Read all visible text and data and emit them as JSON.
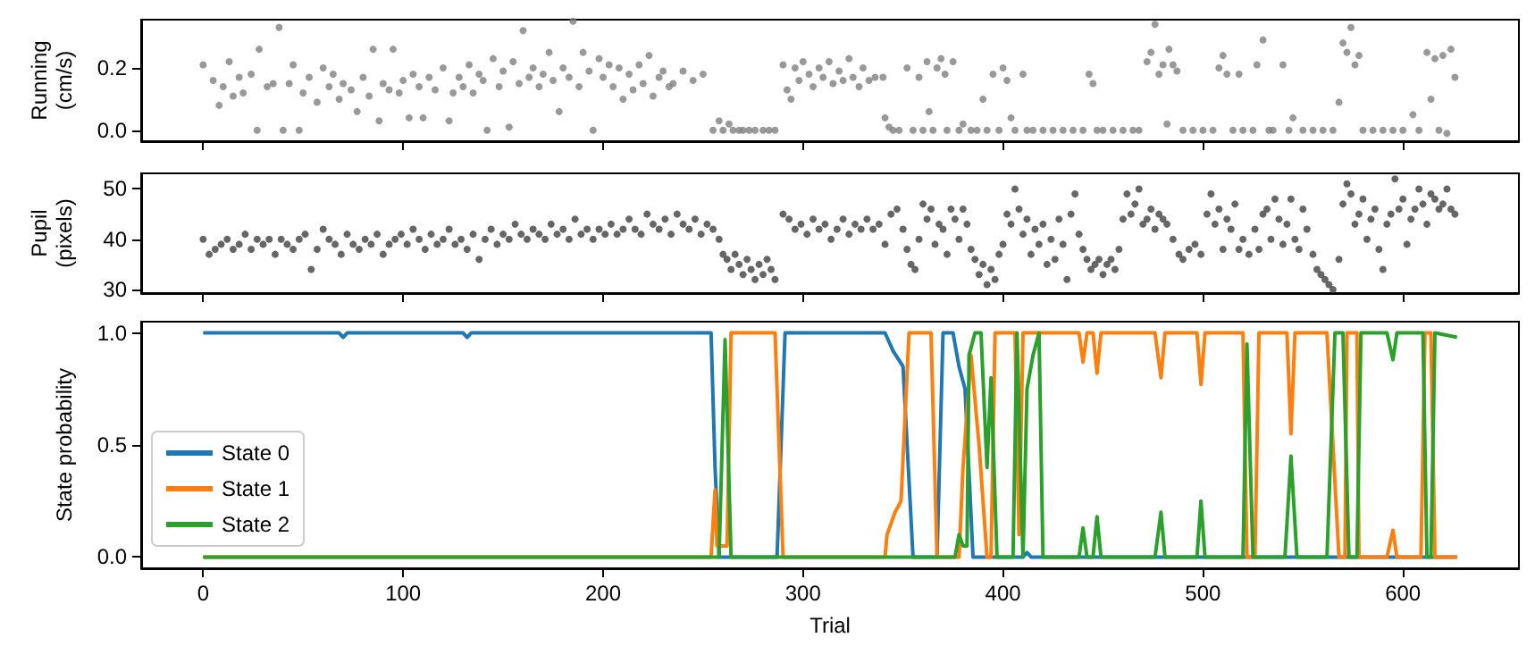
{
  "chart_data": [
    {
      "type": "scatter",
      "ylabel": "Running\n(cm/s)",
      "marker": "circle",
      "tick_labels": "y",
      "xlim": [
        -31,
        658
      ],
      "xticks": [
        0,
        100,
        200,
        300,
        400,
        500,
        600
      ],
      "ylim": [
        -0.035,
        0.355
      ],
      "yticks": [
        {
          "value": 0,
          "label": "0.0"
        },
        {
          "value": 0.2,
          "label": "0.2"
        }
      ],
      "series": [
        {
          "color": "#808080",
          "x": [
            0,
            5,
            8,
            10,
            13,
            15,
            18,
            20,
            24,
            27,
            28,
            32,
            35,
            38,
            40,
            43,
            45,
            48,
            50,
            53,
            57,
            60,
            63,
            65,
            68,
            70,
            74,
            77,
            80,
            83,
            85,
            88,
            90,
            93,
            95,
            98,
            100,
            103,
            105,
            108,
            110,
            113,
            116,
            120,
            123,
            125,
            128,
            130,
            133,
            135,
            138,
            140,
            142,
            145,
            148,
            150,
            153,
            155,
            158,
            160,
            163,
            165,
            168,
            170,
            173,
            175,
            178,
            180,
            183,
            185,
            188,
            190,
            193,
            195,
            198,
            200,
            203,
            205,
            208,
            210,
            213,
            215,
            218,
            220,
            223,
            225,
            228,
            230,
            233,
            235,
            240,
            245,
            250,
            255,
            258,
            260,
            263,
            265,
            268,
            270,
            273,
            276,
            280,
            283,
            286,
            290,
            292,
            294,
            296,
            298,
            300,
            303,
            305,
            308,
            310,
            313,
            315,
            318,
            320,
            323,
            325,
            328,
            330,
            333,
            336,
            340,
            341,
            343,
            345,
            348,
            352,
            355,
            358,
            360,
            362,
            363,
            365,
            367,
            369,
            371,
            372,
            375,
            378,
            380,
            384,
            387,
            390,
            392,
            395,
            398,
            400,
            402,
            404,
            406,
            410,
            412,
            415,
            420,
            425,
            430,
            435,
            440,
            443,
            445,
            447,
            450,
            455,
            460,
            465,
            468,
            472,
            474,
            476,
            478,
            480,
            482,
            483,
            485,
            487,
            490,
            495,
            500,
            505,
            508,
            510,
            512,
            515,
            518,
            520,
            525,
            527,
            530,
            533,
            535,
            540,
            543,
            545,
            550,
            555,
            560,
            565,
            568,
            570,
            572,
            574,
            576,
            578,
            580,
            585,
            590,
            595,
            600,
            605,
            608,
            612,
            614,
            616,
            618,
            620,
            622,
            624,
            626
          ],
          "values": [
            0.21,
            0.16,
            0.08,
            0.14,
            0.22,
            0.11,
            0.17,
            0.12,
            0.18,
            0.0,
            0.26,
            0.14,
            0.15,
            0.33,
            0.0,
            0.15,
            0.21,
            0.0,
            0.12,
            0.17,
            0.09,
            0.2,
            0.14,
            0.18,
            0.1,
            0.15,
            0.13,
            0.06,
            0.17,
            0.11,
            0.26,
            0.03,
            0.15,
            0.13,
            0.26,
            0.12,
            0.16,
            0.04,
            0.18,
            0.14,
            0.04,
            0.17,
            0.13,
            0.2,
            0.03,
            0.12,
            0.17,
            0.14,
            0.21,
            0.12,
            0.18,
            0.16,
            0.0,
            0.23,
            0.14,
            0.19,
            0.01,
            0.22,
            0.15,
            0.32,
            0.17,
            0.2,
            0.14,
            0.18,
            0.25,
            0.16,
            0.06,
            0.2,
            0.17,
            0.35,
            0.14,
            0.25,
            0.19,
            0.0,
            0.23,
            0.17,
            0.21,
            0.14,
            0.2,
            0.1,
            0.18,
            0.13,
            0.21,
            0.15,
            0.24,
            0.11,
            0.17,
            0.19,
            0.14,
            0.15,
            0.19,
            0.16,
            0.18,
            0.0,
            0.03,
            0.0,
            0.02,
            0.0,
            0.0,
            0.0,
            0.0,
            0.0,
            0.0,
            0.0,
            0.0,
            0.21,
            0.13,
            0.1,
            0.2,
            0.16,
            0.22,
            0.18,
            0.14,
            0.2,
            0.17,
            0.22,
            0.15,
            0.19,
            0.16,
            0.23,
            0.17,
            0.14,
            0.2,
            0.16,
            0.17,
            0.17,
            0.04,
            0.01,
            0.0,
            0.0,
            0.2,
            0.0,
            0.17,
            0.0,
            0.22,
            0.06,
            0.0,
            0.2,
            0.23,
            0.18,
            0.0,
            0.22,
            0.0,
            0.02,
            0.0,
            0.0,
            0.1,
            0.0,
            0.18,
            0.0,
            0.2,
            0.16,
            0.04,
            0.0,
            0.18,
            0.0,
            0.0,
            0.0,
            0.0,
            0.0,
            0.0,
            0.0,
            0.18,
            0.15,
            0.0,
            0.0,
            0.0,
            0.0,
            0.0,
            0.0,
            0.22,
            0.25,
            0.34,
            0.18,
            0.21,
            0.02,
            0.26,
            0.21,
            0.19,
            0.0,
            0.0,
            0.0,
            0.0,
            0.2,
            0.24,
            0.18,
            0.0,
            0.18,
            0.0,
            0.0,
            0.21,
            0.29,
            0.0,
            0.0,
            0.21,
            0.0,
            0.04,
            0.0,
            0.0,
            0.0,
            0.0,
            0.09,
            0.28,
            0.25,
            0.33,
            0.21,
            0.24,
            0.0,
            0.0,
            0.0,
            0.0,
            0.0,
            0.05,
            0.0,
            0.25,
            0.1,
            0.23,
            0.0,
            0.24,
            -0.01,
            0.26,
            0.17
          ]
        }
      ]
    },
    {
      "type": "scatter",
      "ylabel": "Pupil\n(pixels)",
      "marker": "circle",
      "tick_labels": "y",
      "xlim": [
        -31,
        658
      ],
      "xticks": [
        0,
        100,
        200,
        300,
        400,
        500,
        600
      ],
      "ylim": [
        29.3,
        53.1
      ],
      "yticks": [
        30,
        40,
        50
      ],
      "series": [
        {
          "color": "#404040",
          "x": [
            0,
            3,
            6,
            9,
            12,
            15,
            18,
            21,
            24,
            27,
            30,
            33,
            36,
            39,
            42,
            45,
            48,
            51,
            54,
            57,
            60,
            63,
            66,
            69,
            72,
            75,
            78,
            81,
            84,
            87,
            90,
            93,
            96,
            99,
            102,
            105,
            108,
            111,
            114,
            117,
            120,
            123,
            126,
            129,
            132,
            135,
            138,
            141,
            144,
            147,
            150,
            153,
            156,
            159,
            162,
            165,
            168,
            171,
            174,
            177,
            180,
            183,
            186,
            189,
            192,
            195,
            198,
            201,
            204,
            207,
            210,
            213,
            216,
            219,
            222,
            225,
            228,
            231,
            234,
            237,
            240,
            243,
            246,
            249,
            252,
            255,
            258,
            260,
            262,
            264,
            266,
            268,
            270,
            272,
            274,
            276,
            278,
            280,
            282,
            284,
            286,
            290,
            293,
            296,
            299,
            302,
            305,
            308,
            311,
            314,
            317,
            320,
            323,
            326,
            329,
            332,
            335,
            338,
            341,
            344,
            347,
            350,
            352,
            354,
            356,
            358,
            360,
            362,
            364,
            366,
            368,
            370,
            372,
            374,
            376,
            378,
            380,
            382,
            384,
            386,
            388,
            390,
            392,
            394,
            396,
            398,
            400,
            402,
            404,
            406,
            408,
            410,
            412,
            414,
            416,
            418,
            420,
            422,
            424,
            426,
            428,
            430,
            432,
            434,
            436,
            438,
            440,
            442,
            444,
            446,
            448,
            450,
            452,
            454,
            456,
            458,
            460,
            462,
            464,
            466,
            468,
            470,
            472,
            474,
            476,
            478,
            480,
            482,
            485,
            488,
            490,
            493,
            496,
            499,
            502,
            504,
            506,
            508,
            510,
            512,
            514,
            516,
            518,
            520,
            523,
            526,
            528,
            530,
            532,
            534,
            536,
            538,
            540,
            542,
            544,
            546,
            548,
            550,
            552,
            555,
            557,
            559,
            561,
            563,
            565,
            568,
            570,
            572,
            574,
            576,
            578,
            580,
            582,
            584,
            586,
            588,
            590,
            592,
            594,
            596,
            598,
            600,
            602,
            604,
            606,
            608,
            610,
            612,
            614,
            616,
            618,
            620,
            622,
            624,
            626
          ],
          "values": [
            40,
            37,
            38,
            39,
            40,
            38,
            39,
            41,
            38,
            40,
            39,
            40,
            37,
            40,
            39,
            38,
            40,
            41,
            34,
            38,
            42,
            40,
            39,
            37,
            41,
            39,
            38,
            40,
            39,
            41,
            37,
            39,
            40,
            41,
            39,
            42,
            40,
            38,
            41,
            39,
            40,
            42,
            39,
            40,
            38,
            41,
            36,
            40,
            42,
            39,
            41,
            40,
            43,
            41,
            40,
            42,
            41,
            40,
            43,
            41,
            42,
            40,
            44,
            41,
            42,
            40,
            42,
            41,
            43,
            41,
            42,
            44,
            42,
            41,
            45,
            43,
            42,
            44,
            41,
            45,
            43,
            42,
            44,
            41,
            43,
            42,
            40,
            37,
            36,
            34,
            37,
            35,
            33,
            36,
            34,
            32,
            35,
            33,
            36,
            34,
            32,
            45,
            44,
            42,
            43,
            41,
            44,
            42,
            43,
            40,
            42,
            44,
            41,
            43,
            42,
            44,
            42,
            43,
            39,
            45,
            46,
            42,
            38,
            35,
            34,
            40,
            47,
            44,
            46,
            39,
            43,
            42,
            37,
            46,
            44,
            40,
            46,
            43,
            38,
            36,
            33,
            35,
            31,
            34,
            32,
            37,
            39,
            45,
            43,
            50,
            46,
            41,
            44,
            37,
            42,
            39,
            43,
            35,
            40,
            36,
            44,
            39,
            32,
            45,
            49,
            41,
            38,
            36,
            34,
            35,
            36,
            33,
            35,
            36,
            34,
            38,
            44,
            49,
            45,
            47,
            50,
            43,
            44,
            46,
            42,
            45,
            44,
            43,
            40,
            37,
            36,
            38,
            39,
            37,
            45,
            49,
            43,
            46,
            38,
            44,
            42,
            47,
            38,
            40,
            37,
            42,
            38,
            45,
            46,
            40,
            48,
            44,
            39,
            43,
            48,
            40,
            38,
            46,
            42,
            37,
            34,
            33,
            32,
            31,
            30,
            36,
            47,
            51,
            49,
            43,
            45,
            48,
            40,
            44,
            46,
            38,
            34,
            43,
            45,
            52,
            46,
            48,
            39,
            44,
            46,
            50,
            47,
            43,
            49,
            48,
            46,
            47,
            50,
            46,
            45
          ]
        }
      ]
    },
    {
      "type": "line",
      "xlabel": "Trial",
      "ylabel": "State probability",
      "legend": "left",
      "marker": "none",
      "xlim": [
        -31,
        658
      ],
      "xticks": [
        0,
        100,
        200,
        300,
        400,
        500,
        600
      ],
      "ylim": [
        -0.05,
        1.05
      ],
      "yticks": [
        {
          "value": 0,
          "label": "0.0"
        },
        {
          "value": 0.5,
          "label": "0.5"
        },
        {
          "value": 1,
          "label": "1.0"
        }
      ],
      "series": [
        {
          "name": "State 0",
          "color": "#1f77b4",
          "x": [
            0,
            68,
            70,
            72,
            130,
            132,
            134,
            254,
            256,
            258,
            287,
            291,
            341,
            345,
            350,
            355,
            367,
            370,
            375,
            378,
            381,
            385,
            410,
            412,
            414,
            627
          ],
          "values": [
            1,
            1,
            0.98,
            1,
            1,
            0.98,
            1,
            1,
            0.4,
            0,
            0,
            1,
            1,
            0.92,
            0.85,
            0,
            0,
            1,
            1,
            0.85,
            0.75,
            0,
            0,
            0.02,
            0,
            0
          ]
        },
        {
          "name": "State 1",
          "color": "#ff7f0e",
          "x": [
            0,
            254,
            256,
            257,
            262,
            264,
            286,
            290,
            341,
            342,
            346,
            349,
            353,
            364,
            367,
            378,
            380,
            384,
            388,
            392,
            394,
            396,
            406,
            408,
            410,
            418,
            438,
            440,
            442,
            445,
            447,
            449,
            476,
            479,
            481,
            497,
            499,
            501,
            520,
            522,
            526,
            528,
            542,
            544,
            546,
            562,
            568,
            571,
            572,
            577,
            578,
            592,
            595,
            597,
            609,
            611,
            614,
            616,
            627
          ],
          "values": [
            0,
            0,
            0.3,
            0.05,
            0.05,
            1,
            1,
            0,
            0,
            0.1,
            0.2,
            0.25,
            1,
            1,
            0,
            0,
            0.4,
            0.9,
            0.5,
            0,
            0,
            1,
            1,
            0.1,
            1,
            1,
            1,
            0.87,
            1,
            1,
            0.82,
            1,
            1,
            0.8,
            1,
            1,
            0.77,
            1,
            1,
            0,
            0,
            1,
            1,
            0.55,
            1,
            1,
            0,
            0,
            1,
            1,
            0,
            0,
            0.12,
            0,
            0,
            1,
            1,
            0,
            0
          ]
        },
        {
          "name": "State 2",
          "color": "#2ca02c",
          "x": [
            0,
            258,
            261,
            264,
            376,
            378,
            380,
            382,
            383,
            386,
            389,
            392,
            394,
            397,
            405,
            407,
            410,
            412,
            415,
            418,
            420,
            438,
            440,
            442,
            445,
            447,
            449,
            476,
            479,
            481,
            497,
            499,
            501,
            520,
            522,
            525,
            541,
            544,
            547,
            562,
            566,
            570,
            573,
            577,
            579,
            592,
            595,
            597,
            610,
            612,
            614,
            616,
            627
          ],
          "values": [
            0,
            0,
            0.97,
            0,
            0,
            0.1,
            0.05,
            0.05,
            0.9,
            1,
            1,
            0.4,
            0.8,
            0,
            0,
            1,
            0,
            0.75,
            0.9,
            1,
            0,
            0,
            0.13,
            0,
            0,
            0.18,
            0,
            0,
            0.2,
            0,
            0,
            0.25,
            0,
            0,
            0.95,
            0,
            0,
            0.45,
            0,
            0,
            1,
            1,
            0,
            0,
            1,
            1,
            0.88,
            1,
            1,
            0,
            0,
            1,
            0.98
          ]
        }
      ]
    }
  ]
}
